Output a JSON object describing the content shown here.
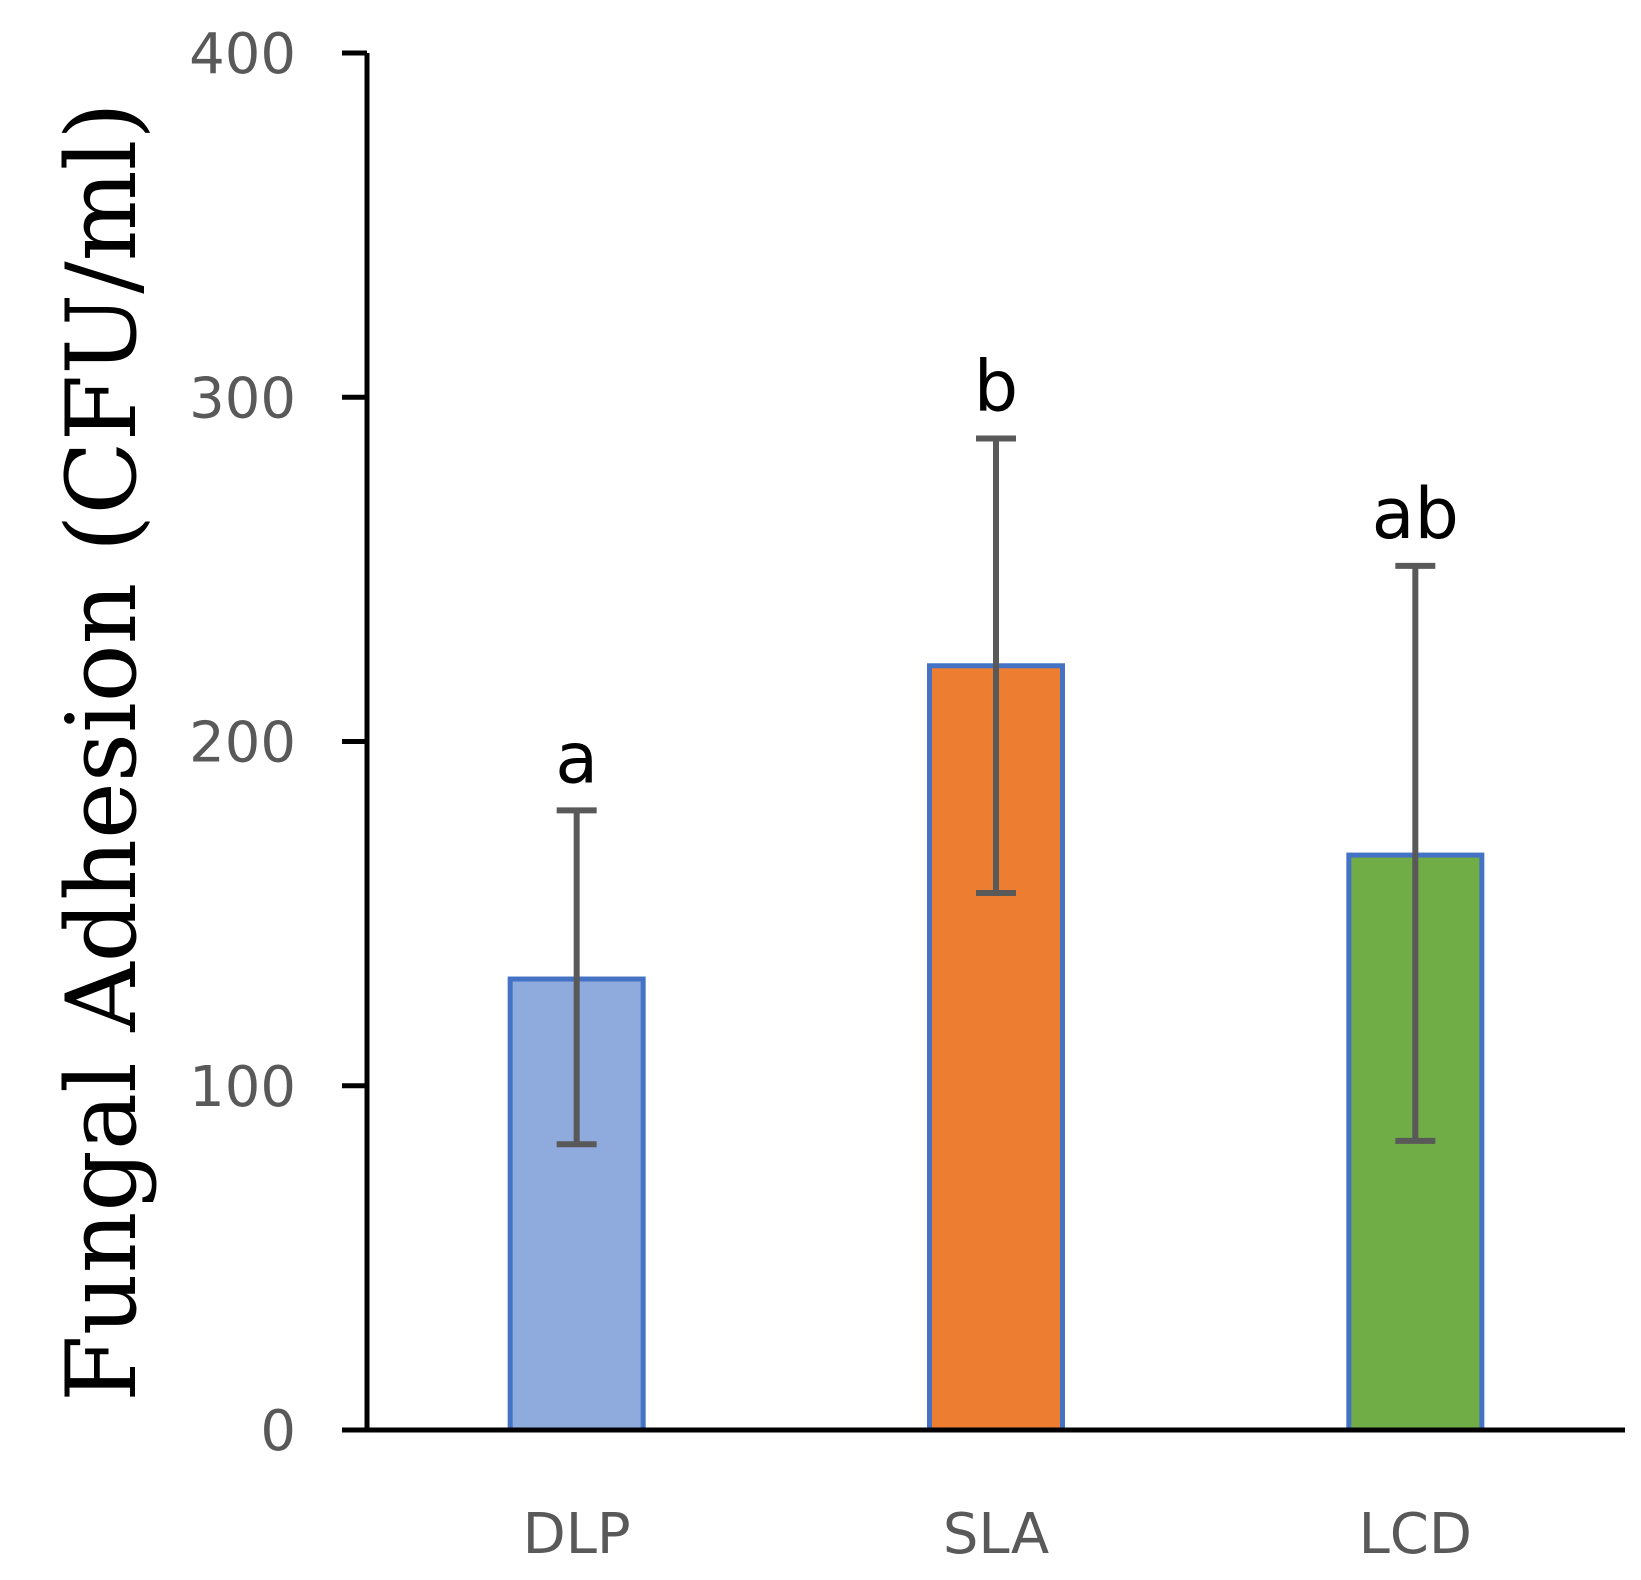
{
  "chart_data": {
    "type": "bar",
    "title": "",
    "xlabel": "",
    "ylabel": "Fungal Adhesion (CFU/ml)",
    "ylim": [
      0,
      400
    ],
    "yticks": [
      0,
      100,
      200,
      300,
      400
    ],
    "ytick_labels": [
      "0",
      "100",
      "200",
      "300",
      "400"
    ],
    "categories": [
      "DLP",
      "SLA",
      "LCD"
    ],
    "values": [
      131,
      222,
      167
    ],
    "error_low": [
      83,
      156,
      84
    ],
    "error_high": [
      180,
      288,
      251
    ],
    "significance": [
      "a",
      "b",
      "ab"
    ],
    "colors": {
      "bars": [
        "#8FAADC",
        "#ED7D31",
        "#70AD47"
      ],
      "bar_edge": "#4472C4",
      "error_bar": "#595959",
      "axis": "#000000"
    },
    "grid": false
  }
}
